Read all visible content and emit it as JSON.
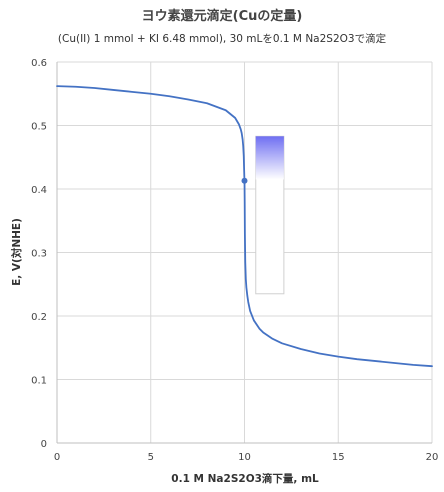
{
  "chart_data": {
    "type": "line",
    "title": "ヨウ素還元滴定(Cuの定量)",
    "subtitle": "(Cu(II) 1 mmol + KI 6.48 mmol), 30 mLを0.1 M Na2S2O3で滴定",
    "xlabel": "0.1 M Na2S2O3滴下量, mL",
    "ylabel": "E, V(対NHE)",
    "xlim": [
      0,
      20
    ],
    "ylim": [
      0,
      0.6
    ],
    "xticks": [
      "0",
      "5",
      "10",
      "15",
      "20"
    ],
    "yticks": [
      "0",
      "0.1",
      "0.2",
      "0.3",
      "0.4",
      "0.5",
      "0.6"
    ],
    "grid": true,
    "legend": "none",
    "series": [
      {
        "color": "#4472c4",
        "x": [
          0,
          1,
          2,
          3,
          4,
          5,
          6,
          7,
          8,
          9,
          9.5,
          9.7,
          9.8,
          9.85,
          9.9,
          9.93,
          9.96,
          9.98,
          9.99,
          10.0,
          10.01,
          10.02,
          10.04,
          10.07,
          10.1,
          10.15,
          10.2,
          10.3,
          10.5,
          10.8,
          11,
          11.5,
          12,
          13,
          14,
          15,
          16,
          17,
          18,
          19,
          20
        ],
        "y": [
          0.562,
          0.561,
          0.559,
          0.556,
          0.553,
          0.55,
          0.546,
          0.541,
          0.535,
          0.524,
          0.512,
          0.502,
          0.494,
          0.488,
          0.478,
          0.468,
          0.452,
          0.43,
          0.42,
          0.413,
          0.38,
          0.33,
          0.285,
          0.258,
          0.245,
          0.232,
          0.222,
          0.208,
          0.193,
          0.18,
          0.174,
          0.164,
          0.157,
          0.148,
          0.141,
          0.136,
          0.132,
          0.129,
          0.126,
          0.123,
          0.121
        ]
      }
    ],
    "marker": {
      "x": 10.0,
      "y": 0.413,
      "color": "#4472c4"
    },
    "indicator": {
      "type": "color-gradient-bar",
      "x_range": [
        10.6,
        12.1
      ],
      "y_top": 0.483,
      "y_color_end": 0.415,
      "y_bottom": 0.235,
      "colors": [
        "#6f6ff2",
        "#ffffff"
      ],
      "border_color": "#d0d0d0"
    },
    "colors": {
      "line": "#4472c4",
      "grid": "#d9d9d9",
      "axis": "#bfbfbf"
    }
  }
}
